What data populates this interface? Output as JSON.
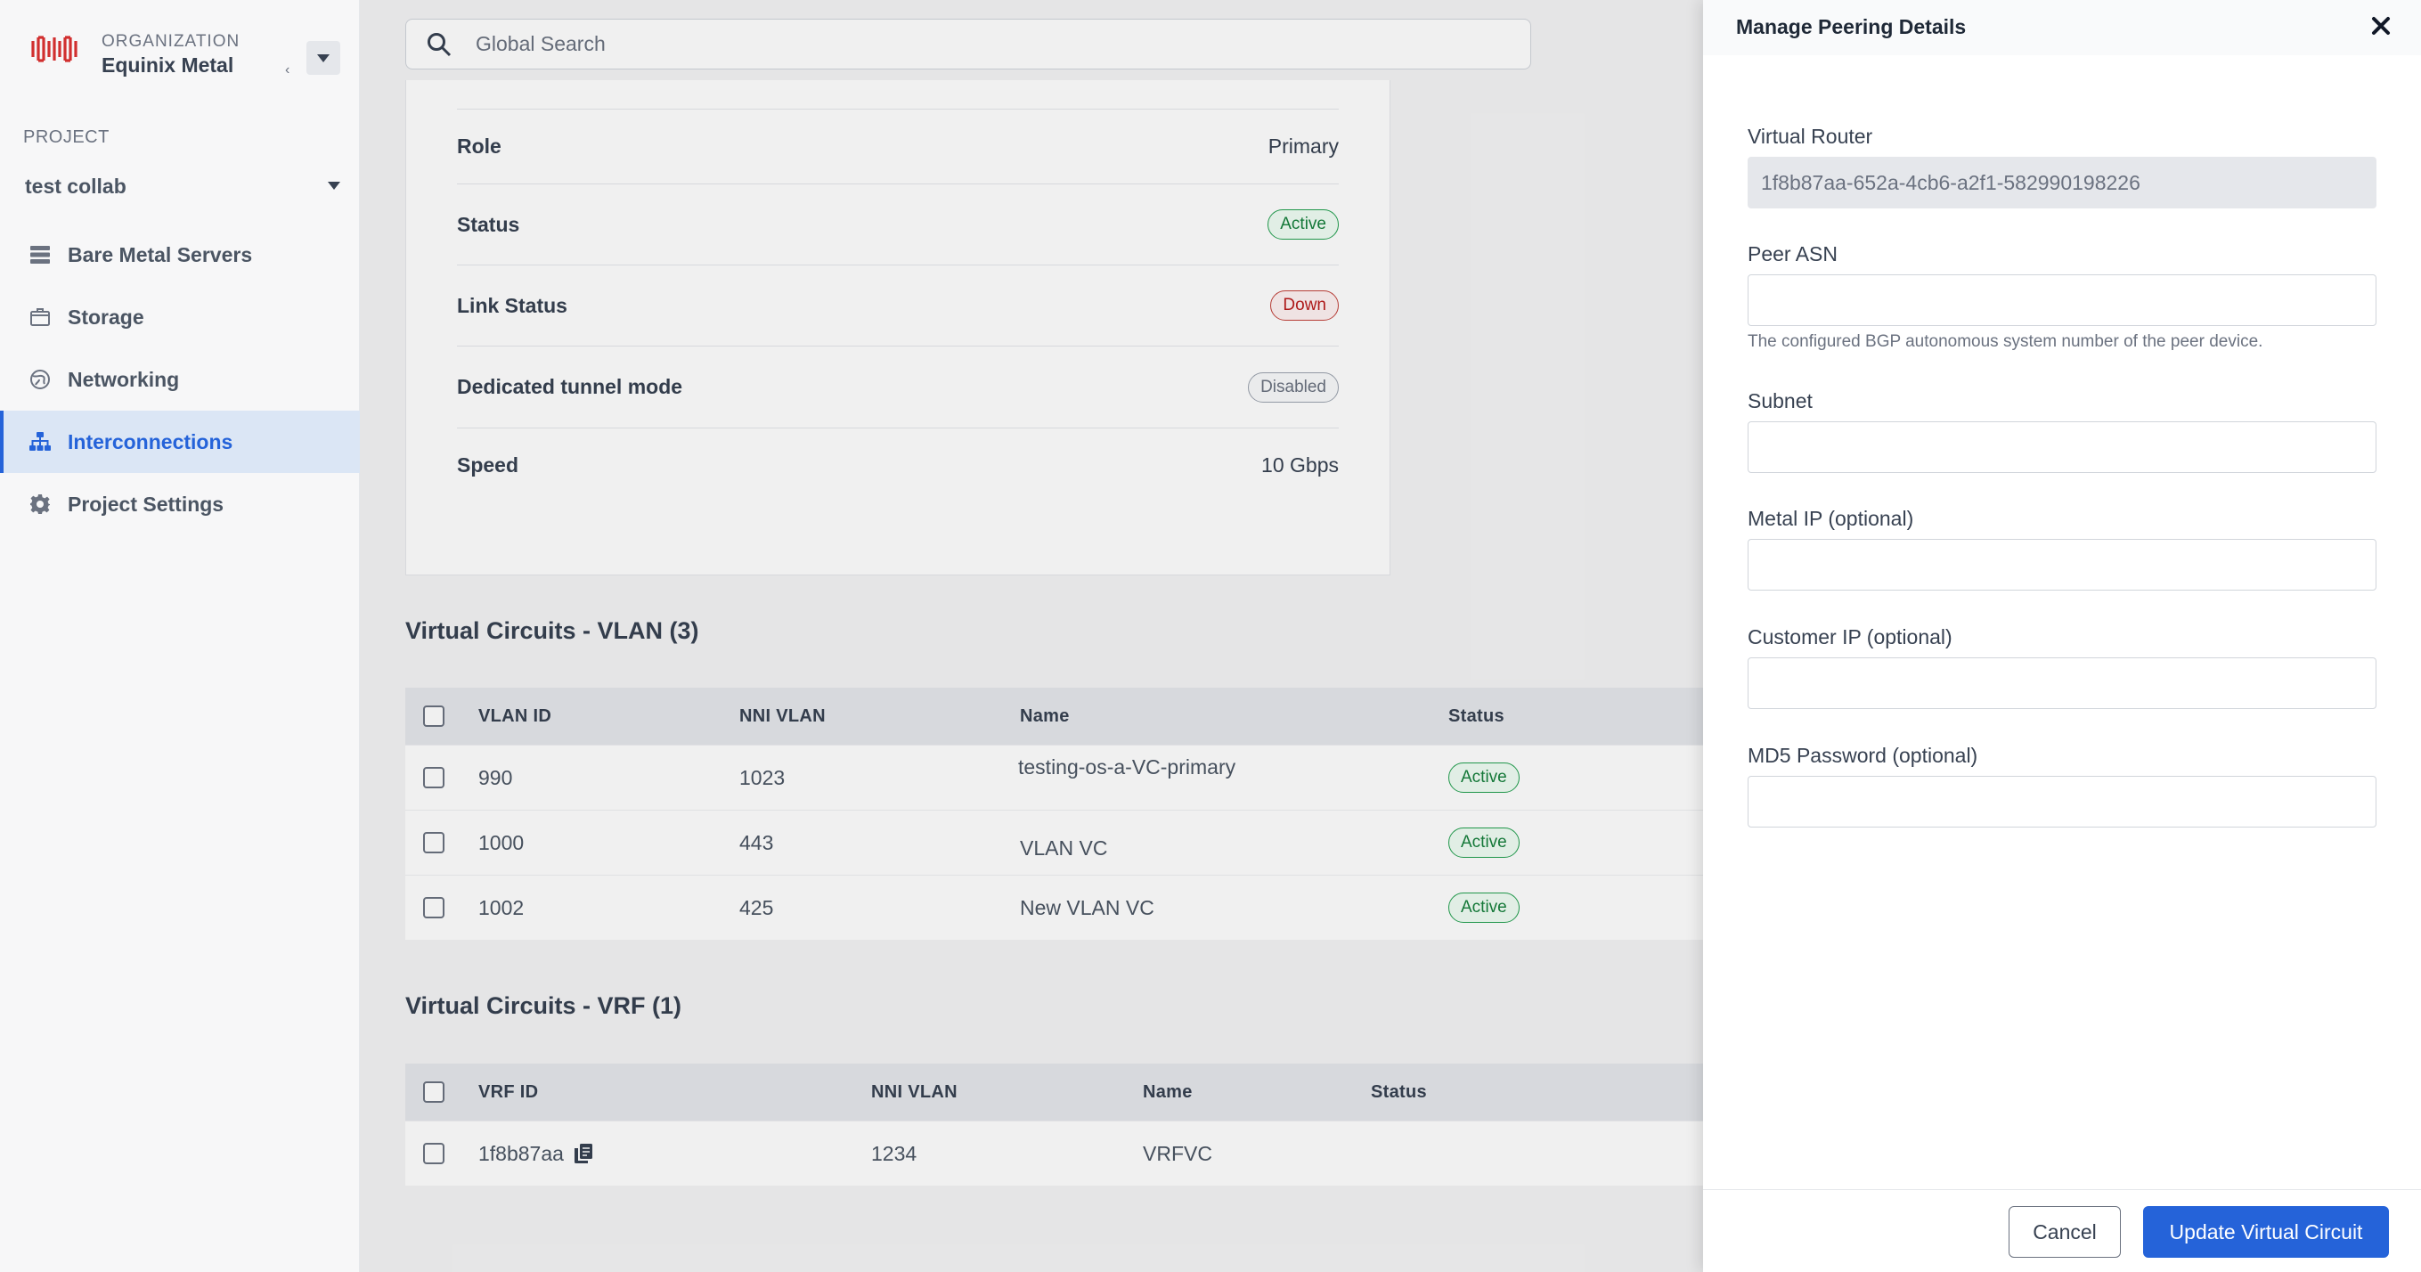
{
  "colors": {
    "accent": "#2563d9",
    "active_green": "#16803c",
    "down_red": "#b91c1c",
    "brand_red": "#d12f2f"
  },
  "org": {
    "caption": "ORGANIZATION",
    "name": "Equinix Metal",
    "tick": "‹"
  },
  "project": {
    "caption": "PROJECT",
    "name": "test collab"
  },
  "nav": [
    {
      "label": "Bare Metal Servers",
      "icon": "server-icon"
    },
    {
      "label": "Storage",
      "icon": "storage-icon"
    },
    {
      "label": "Networking",
      "icon": "globe-icon"
    },
    {
      "label": "Interconnections",
      "icon": "network-icon",
      "active": true
    },
    {
      "label": "Project Settings",
      "icon": "gear-icon"
    }
  ],
  "search": {
    "placeholder": "Global Search"
  },
  "details": {
    "role": {
      "label": "Role",
      "value": "Primary"
    },
    "status": {
      "label": "Status",
      "value": "Active"
    },
    "link_status": {
      "label": "Link Status",
      "value": "Down"
    },
    "tunnel": {
      "label": "Dedicated tunnel mode",
      "value": "Disabled"
    },
    "speed": {
      "label": "Speed",
      "value": "10 Gbps"
    }
  },
  "vlan": {
    "title": "Virtual Circuits - VLAN (3)",
    "headers": [
      "VLAN ID",
      "NNI VLAN",
      "Name",
      "Status"
    ],
    "rows": [
      {
        "id": "990",
        "nni": "1023",
        "name": "testing-os-a-VC-primary",
        "status": "Active"
      },
      {
        "id": "1000",
        "nni": "443",
        "name": "VLAN VC",
        "status": "Active"
      },
      {
        "id": "1002",
        "nni": "425",
        "name": "New VLAN VC",
        "status": "Active"
      }
    ]
  },
  "vrf": {
    "title": "Virtual Circuits - VRF (1)",
    "headers": [
      "VRF ID",
      "NNI VLAN",
      "Name",
      "Status"
    ],
    "rows": [
      {
        "id": "1f8b87aa",
        "nni": "1234",
        "name": "VRFVC",
        "status": ""
      }
    ]
  },
  "panel": {
    "title": "Manage Peering Details",
    "virtual_router": {
      "label": "Virtual Router",
      "value": "1f8b87aa-652a-4cb6-a2f1-582990198226"
    },
    "peer_asn": {
      "label": "Peer ASN",
      "value": "",
      "help": "The configured BGP autonomous system number of the peer device."
    },
    "subnet": {
      "label": "Subnet",
      "value": ""
    },
    "metal_ip": {
      "label": "Metal IP (optional)",
      "value": ""
    },
    "customer_ip": {
      "label": "Customer IP (optional)",
      "value": ""
    },
    "md5": {
      "label": "MD5 Password (optional)",
      "value": ""
    },
    "cancel_label": "Cancel",
    "submit_label": "Update Virtual Circuit"
  }
}
